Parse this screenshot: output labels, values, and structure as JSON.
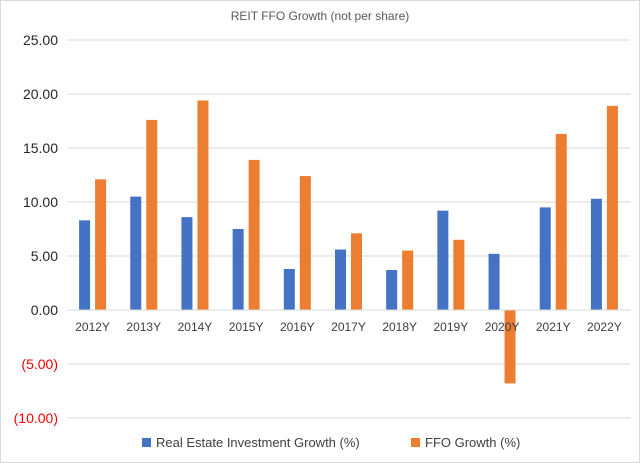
{
  "chart_data": {
    "type": "bar",
    "title": "REIT FFO Growth (not per share)",
    "categories": [
      "2012Y",
      "2013Y",
      "2014Y",
      "2015Y",
      "2016Y",
      "2017Y",
      "2018Y",
      "2019Y",
      "2020Y",
      "2021Y",
      "2022Y"
    ],
    "series": [
      {
        "name": "Real Estate Investment Growth (%)",
        "color": "#4472c4",
        "values": [
          8.3,
          10.5,
          8.6,
          7.5,
          3.8,
          5.6,
          3.7,
          9.2,
          5.2,
          9.5,
          10.3
        ]
      },
      {
        "name": "FFO Growth (%)",
        "color": "#ed7d31",
        "values": [
          12.1,
          17.6,
          19.4,
          13.9,
          12.4,
          7.1,
          5.5,
          6.5,
          -6.8,
          16.3,
          18.9
        ]
      }
    ],
    "ylim": [
      -10,
      25
    ],
    "yticks": [
      {
        "value": 25,
        "label": "25.00"
      },
      {
        "value": 20,
        "label": "20.00"
      },
      {
        "value": 15,
        "label": "15.00"
      },
      {
        "value": 10,
        "label": "10.00"
      },
      {
        "value": 5,
        "label": "5.00"
      },
      {
        "value": 0,
        "label": "0.00"
      },
      {
        "value": -5,
        "label": "(5.00)"
      },
      {
        "value": -10,
        "label": "(10.00)"
      }
    ],
    "negative_label_color": "#ff0000",
    "gridlines": true,
    "legend_position": "bottom"
  }
}
